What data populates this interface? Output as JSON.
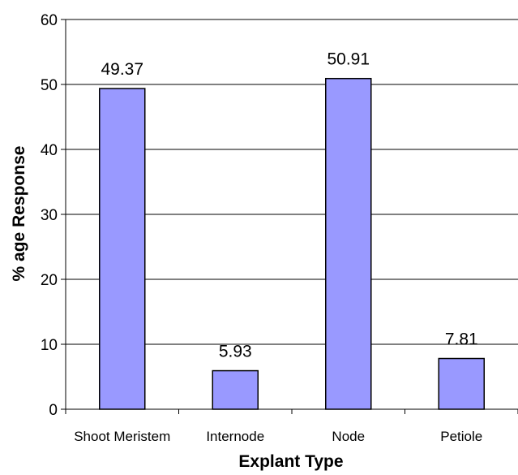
{
  "chart_data": {
    "type": "bar",
    "categories": [
      "Shoot Meristem",
      "Internode",
      "Node",
      "Petiole"
    ],
    "values": [
      49.37,
      5.93,
      50.91,
      7.81
    ],
    "data_labels": [
      "49.37",
      "5.93",
      "50.91",
      "7.81"
    ],
    "xlabel": "Explant Type",
    "ylabel": "% age Response",
    "ylim": [
      0,
      60
    ],
    "yticks": [
      0,
      10,
      20,
      30,
      40,
      50,
      60
    ],
    "grid": "horizontal",
    "legend": "none",
    "colors": {
      "bar_fill": "#9999ff",
      "bar_stroke": "#000000",
      "grid": "#000000",
      "axis": "#000000"
    }
  }
}
